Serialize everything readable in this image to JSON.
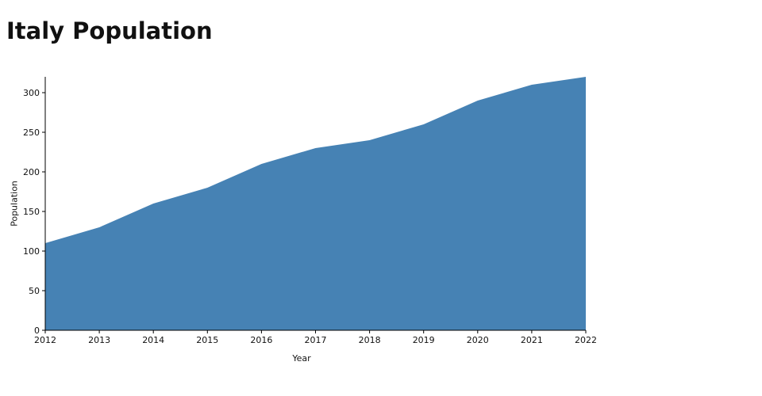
{
  "title": "Italy Population",
  "chart_data": {
    "type": "area",
    "title": "Italy Population",
    "xlabel": "Year",
    "ylabel": "Population",
    "x": [
      2012,
      2013,
      2014,
      2015,
      2016,
      2017,
      2018,
      2019,
      2020,
      2021,
      2022
    ],
    "values": [
      110,
      130,
      160,
      180,
      210,
      230,
      240,
      260,
      290,
      310,
      320
    ],
    "yticks": [
      0,
      50,
      100,
      150,
      200,
      250,
      300
    ],
    "ylim": [
      0,
      320
    ],
    "grid": false,
    "legend": null,
    "area_color": "#4682b4",
    "axis_color": "#000000"
  }
}
